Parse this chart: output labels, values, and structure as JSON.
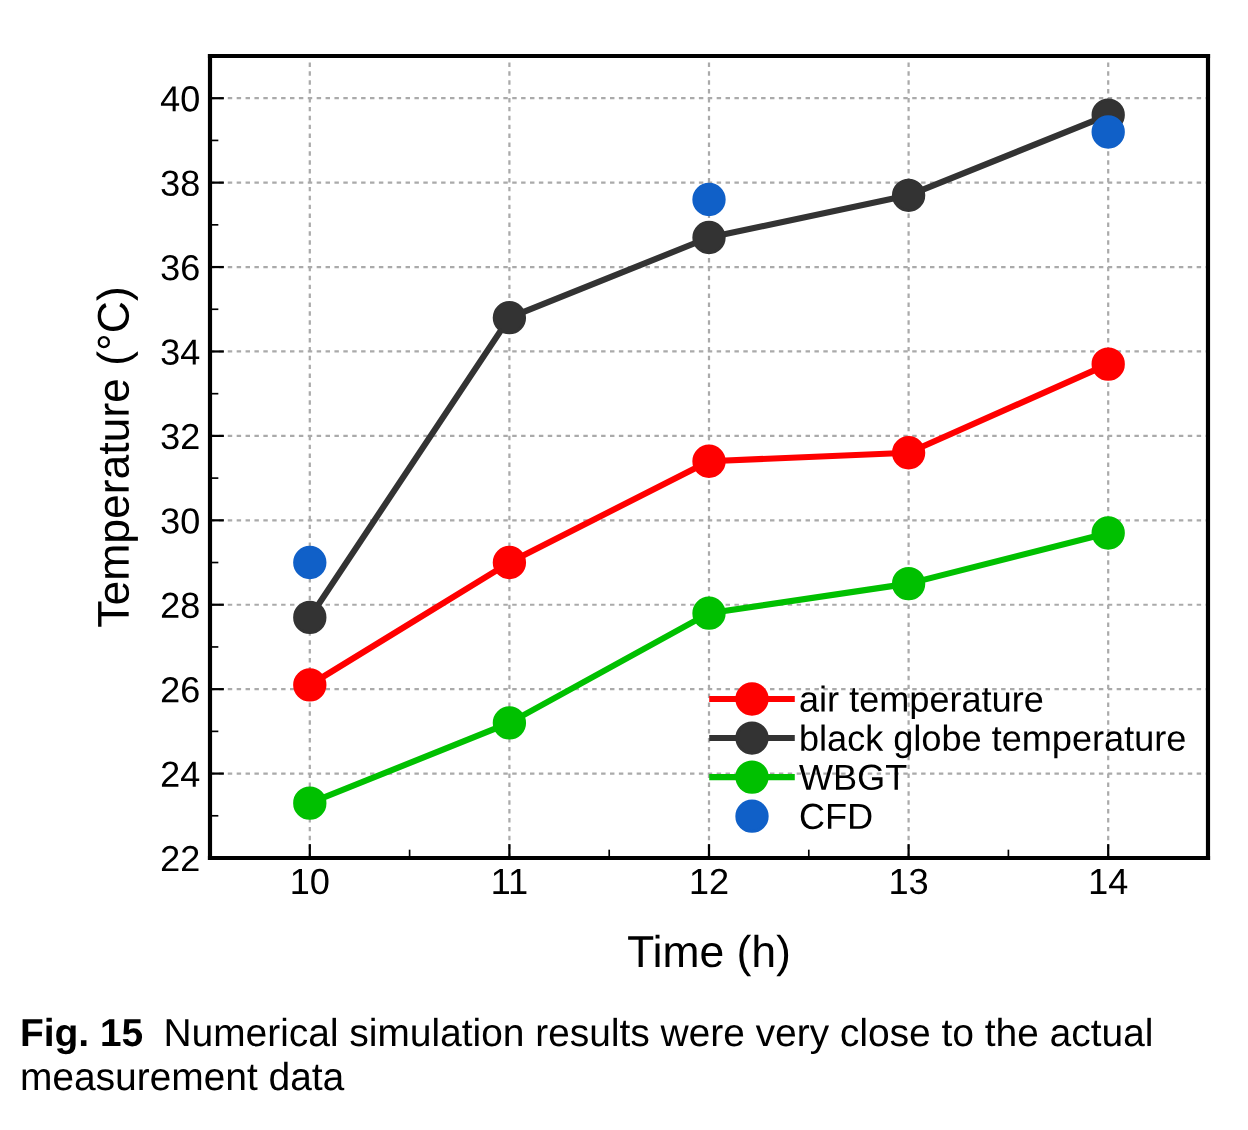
{
  "chart_data": {
    "type": "line",
    "xlabel": "Time (h)",
    "ylabel": "Temperature (°C)",
    "x": [
      10,
      11,
      12,
      13,
      14
    ],
    "series": [
      {
        "name": "air temperature",
        "color": "#ff0000",
        "values": [
          26.1,
          29.0,
          31.4,
          31.6,
          33.7
        ]
      },
      {
        "name": "black globe temperature",
        "color": "#333333",
        "values": [
          27.7,
          34.8,
          36.7,
          37.7,
          39.6
        ]
      },
      {
        "name": "WBGT",
        "color": "#00c000",
        "values": [
          23.3,
          25.2,
          27.8,
          28.5,
          29.7
        ]
      },
      {
        "name": "CFD",
        "type": "scatter",
        "color": "#1060c8",
        "values": [
          29.0,
          null,
          37.6,
          null,
          39.2
        ]
      }
    ],
    "xlim": [
      9.5,
      14.5
    ],
    "xticks": [
      10,
      11,
      12,
      13,
      14
    ],
    "ylim": [
      22,
      41
    ],
    "yticks": [
      22,
      24,
      26,
      28,
      30,
      32,
      34,
      36,
      38,
      40
    ],
    "grid": true,
    "legend": "bottom right",
    "marker": "circle",
    "line_style": "solid",
    "annotations": [
      "Fig. 15",
      "Numerical simulation results were very close to the actual measurement data"
    ]
  }
}
